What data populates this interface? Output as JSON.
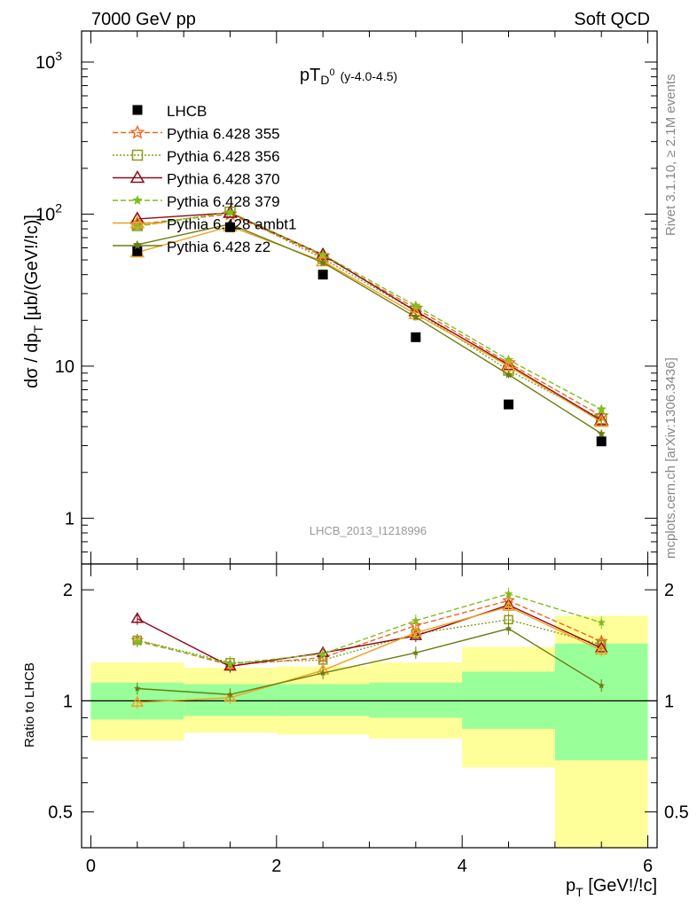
{
  "header": {
    "left": "7000 GeV pp",
    "right": "Soft QCD"
  },
  "side_texts": {
    "rivet": "Rivet 3.1.10, ≥ 2.1M events",
    "mcplots": "mcplots.cern.ch [arXiv:1306.3436]"
  },
  "watermark": "LHCB_2013_I1218996",
  "chart_data": [
    {
      "type": "scatter",
      "panel": "main",
      "title": "pT(D0) (y-4.0-4.5)",
      "title_main": "pT",
      "title_sub": "D",
      "title_sup": "0",
      "title_suffix": "(y-4.0-4.5)",
      "ylabel": "dσ / dp_T [µb/(GeV!/!c)]",
      "ylabel_pre": "dσ / dp",
      "ylabel_sub": "T",
      "ylabel_post": " [µb/(GeV!/!c)]",
      "yscale": "log",
      "xlim": [
        -0.1,
        6.1
      ],
      "ylim": [
        0.5,
        1600
      ],
      "yticks": [
        {
          "v": 1,
          "label": "1"
        },
        {
          "v": 10,
          "label": "10"
        },
        {
          "v": 100,
          "label": "10",
          "exp": "2"
        },
        {
          "v": 1000,
          "label": "10",
          "exp": "3"
        }
      ],
      "x": [
        0.5,
        1.5,
        2.5,
        3.5,
        4.5,
        5.5
      ],
      "x_bins": [
        [
          0,
          1
        ],
        [
          1,
          2
        ],
        [
          2,
          3
        ],
        [
          3,
          4
        ],
        [
          4,
          5
        ],
        [
          5,
          6
        ]
      ],
      "data": {
        "name": "LHCB",
        "values": [
          57,
          82,
          40,
          15.5,
          5.6,
          3.2
        ],
        "color": "#000000",
        "marker": "square"
      },
      "series": [
        {
          "name": "Pythia 6.428 355",
          "values": [
            86,
            100,
            53,
            24,
            10.5,
            4.7
          ],
          "color": "#f26522",
          "dash": "6,3",
          "marker": "star-open"
        },
        {
          "name": "Pythia 6.428 356",
          "values": [
            84,
            103,
            51,
            23,
            9.4,
            4.5
          ],
          "color": "#8a9a1a",
          "dash": "2,2",
          "marker": "square-open"
        },
        {
          "name": "Pythia 6.428 370",
          "values": [
            93,
            102,
            54,
            23,
            10.2,
            4.4
          ],
          "color": "#8b0a1a",
          "dash": "",
          "marker": "triangle-open"
        },
        {
          "name": "Pythia 6.428 379",
          "values": [
            83,
            103,
            54,
            25,
            11,
            5.2
          ],
          "color": "#7fbf1f",
          "dash": "6,3",
          "marker": "star-filled"
        },
        {
          "name": "Pythia 6.428 ambt1",
          "values": [
            56,
            83,
            49,
            22,
            10,
            4.3
          ],
          "color": "#f0a020",
          "dash": "",
          "marker": "triangle-open"
        },
        {
          "name": "Pythia 6.428 z2",
          "values": [
            63,
            86,
            48,
            21,
            8.8,
            3.6
          ],
          "color": "#6b7d10",
          "dash": "",
          "marker": "star-small"
        }
      ]
    },
    {
      "type": "scatter",
      "panel": "ratio",
      "ylabel": "Ratio to LHCB",
      "ylim": [
        0.4,
        2.35
      ],
      "yticks": [
        {
          "v": 0.5,
          "label": "0.5"
        },
        {
          "v": 1,
          "label": "1"
        },
        {
          "v": 2,
          "label": "2"
        }
      ],
      "xticks": [
        {
          "v": 0,
          "label": "0"
        },
        {
          "v": 2,
          "label": "2"
        },
        {
          "v": 4,
          "label": "4"
        },
        {
          "v": 6,
          "label": "6"
        }
      ],
      "xlabel": "p_T [GeV!/!c]",
      "xlabel_pre": "p",
      "xlabel_sub": "T",
      "xlabel_post": " [GeV!/!c]",
      "band_green": [
        [
          0.89,
          1.12
        ],
        [
          0.91,
          1.11
        ],
        [
          0.91,
          1.11
        ],
        [
          0.9,
          1.12
        ],
        [
          0.84,
          1.2
        ],
        [
          0.69,
          1.43
        ]
      ],
      "band_yellow": [
        [
          0.78,
          1.27
        ],
        [
          0.82,
          1.23
        ],
        [
          0.81,
          1.24
        ],
        [
          0.79,
          1.27
        ],
        [
          0.66,
          1.4
        ],
        [
          0.4,
          1.7
        ]
      ],
      "series": [
        {
          "name": "Pythia 6.428 355",
          "values": [
            1.46,
            1.25,
            1.31,
            1.6,
            1.87,
            1.45
          ]
        },
        {
          "name": "Pythia 6.428 356",
          "values": [
            1.46,
            1.27,
            1.29,
            1.52,
            1.66,
            1.42
          ]
        },
        {
          "name": "Pythia 6.428 370",
          "values": [
            1.67,
            1.24,
            1.35,
            1.5,
            1.82,
            1.39
          ]
        },
        {
          "name": "Pythia 6.428 379",
          "values": [
            1.45,
            1.26,
            1.34,
            1.65,
            1.95,
            1.63
          ]
        },
        {
          "name": "Pythia 6.428 ambt1",
          "values": [
            0.99,
            1.02,
            1.21,
            1.53,
            1.8,
            1.37
          ]
        },
        {
          "name": "Pythia 6.428 z2",
          "values": [
            1.08,
            1.04,
            1.19,
            1.35,
            1.57,
            1.1
          ]
        }
      ]
    }
  ]
}
